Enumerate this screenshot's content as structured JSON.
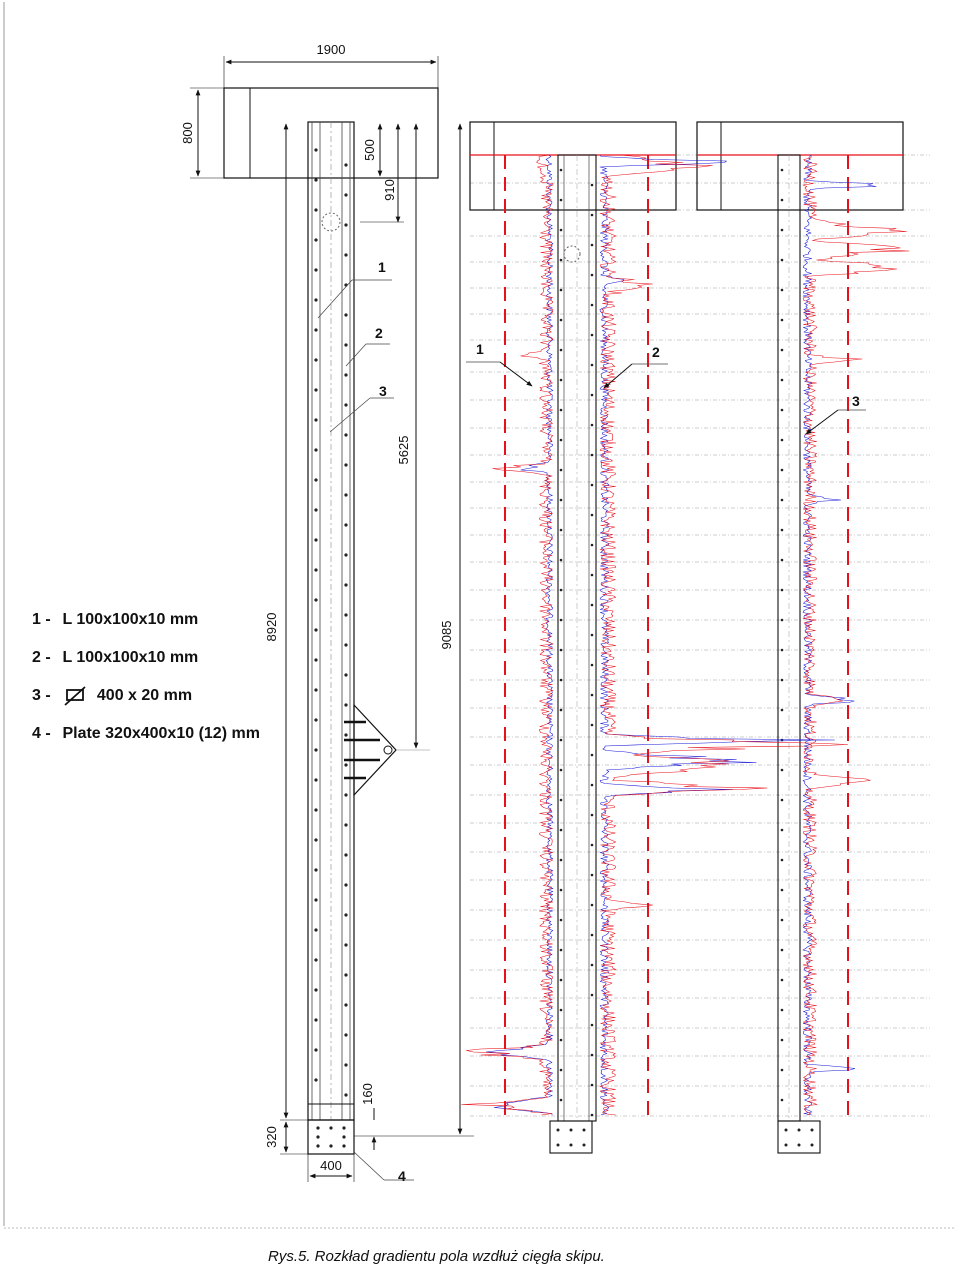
{
  "dimensions": {
    "total_width": "1900",
    "top_plate_height": "800",
    "top_offset": "500",
    "sensor_offset": "910",
    "middle_length": "5625",
    "column_height": "8920",
    "total_height": "9085",
    "bottom_offset": "160",
    "base_height": "320",
    "base_width": "400"
  },
  "drawing_callouts": [
    "1",
    "2",
    "3",
    "4"
  ],
  "chart_callouts": [
    "1",
    "2",
    "3"
  ],
  "legend": [
    {
      "num": "1 -",
      "text": "L 100x100x10 mm"
    },
    {
      "num": "2 -",
      "text": "L 100x100x10 mm"
    },
    {
      "num": "3 -",
      "icon": "flat-bar-icon",
      "text": "400 x 20 mm"
    },
    {
      "num": "4 -",
      "text": "Plate 320x400x10 (12) mm"
    }
  ],
  "caption": "Rys.5. Rozkład gradientu pola wzdłuż cięgła skipu.",
  "colors": {
    "line_drawing": "#111111",
    "trace_red": "#e8101a",
    "trace_blue": "#1a1ad8",
    "grid": "#9a9a9a"
  }
}
